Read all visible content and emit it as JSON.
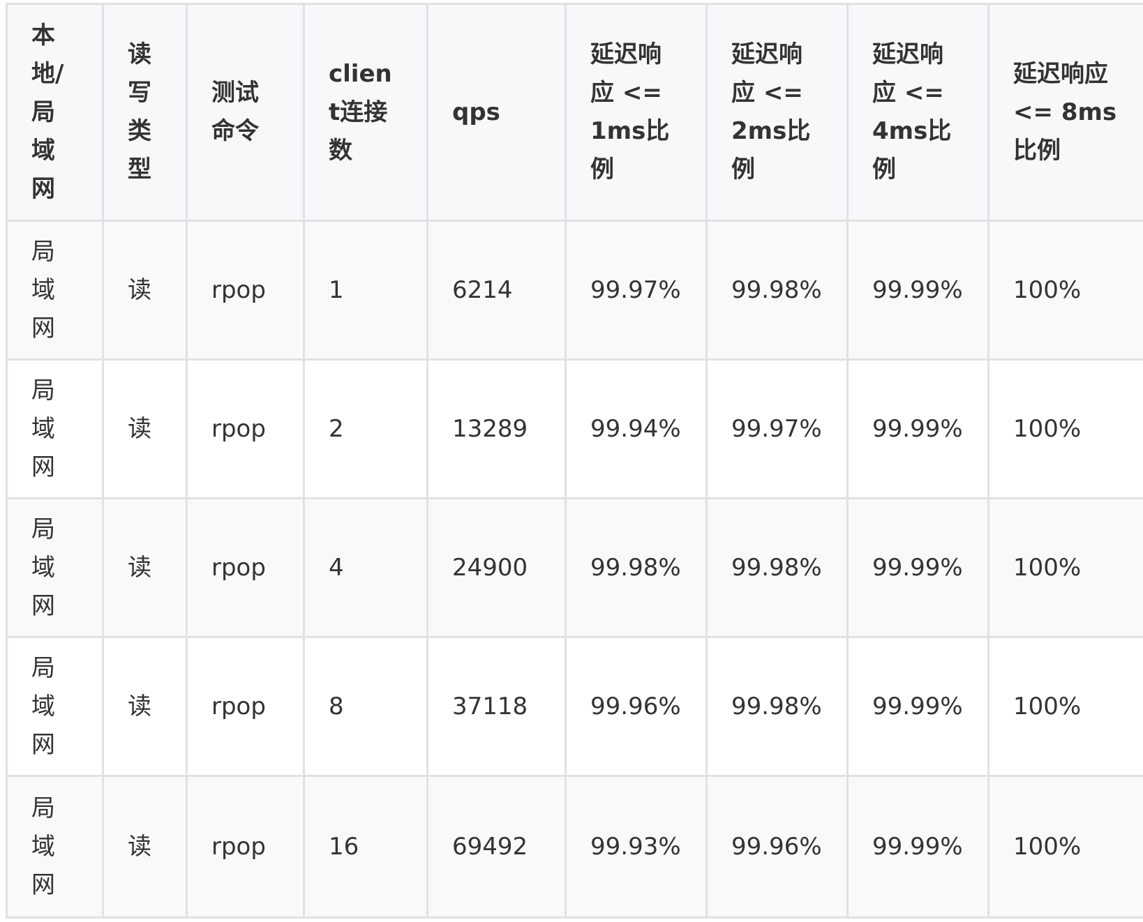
{
  "table": {
    "headers": [
      "本地/局域网",
      "读写类型",
      "测试命令",
      "client连接数",
      "qps",
      "延迟响应 <= 1ms比例",
      "延迟响应 <= 2ms比例",
      "延迟响应 <= 4ms比例",
      "延迟响应 <= 8ms比例"
    ],
    "rows": [
      [
        "局域网",
        "读",
        "rpop",
        "1",
        "6214",
        "99.97%",
        "99.98%",
        "99.99%",
        "100%"
      ],
      [
        "局域网",
        "读",
        "rpop",
        "2",
        "13289",
        "99.94%",
        "99.97%",
        "99.99%",
        "100%"
      ],
      [
        "局域网",
        "读",
        "rpop",
        "4",
        "24900",
        "99.98%",
        "99.98%",
        "99.99%",
        "100%"
      ],
      [
        "局域网",
        "读",
        "rpop",
        "8",
        "37118",
        "99.96%",
        "99.98%",
        "99.99%",
        "100%"
      ],
      [
        "局域网",
        "读",
        "rpop",
        "16",
        "69492",
        "99.93%",
        "99.96%",
        "99.99%",
        "100%"
      ]
    ]
  }
}
